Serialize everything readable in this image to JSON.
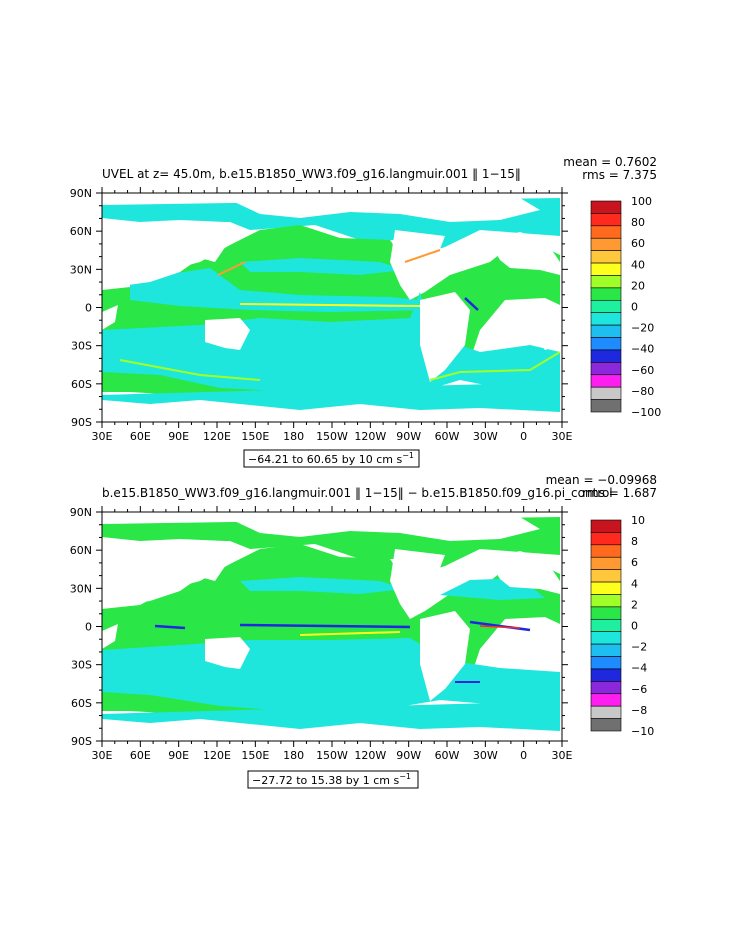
{
  "chart_data": [
    {
      "type": "heatmap",
      "title": "UVEL at z=  45.0m, b.e15.B1850_WW3.f09_g16.langmuir.001 ‖ 1−15‖",
      "mean_text": "mean = 0.7602",
      "rms_text": "rms = 7.375",
      "range_text": "−64.21 to 60.65 by 10 cm s",
      "range_sup": "−1",
      "x_ticks": [
        "30E",
        "60E",
        "90E",
        "120E",
        "150E",
        "180",
        "150W",
        "120W",
        "90W",
        "60W",
        "30W",
        "0",
        "30E"
      ],
      "y_ticks": [
        "90N",
        "60N",
        "30N",
        "0",
        "30S",
        "60S",
        "90S"
      ],
      "colorbar_labels": [
        "100",
        "80",
        "60",
        "40",
        "20",
        "0",
        "−20",
        "−40",
        "−60",
        "−80",
        "−100"
      ],
      "colorbar_colors": [
        "#c8141e",
        "#ff2a1e",
        "#ff6a1e",
        "#ff9a32",
        "#ffc83c",
        "#ffff1e",
        "#a0ff28",
        "#2ae646",
        "#1ef0a0",
        "#1ee6dc",
        "#1ebef0",
        "#1e8cff",
        "#1e28dc",
        "#8c28dc",
        "#ff1ef0",
        "#c8c8c8",
        "#707070"
      ]
    },
    {
      "type": "heatmap",
      "title": "b.e15.B1850_WW3.f09_g16.langmuir.001 ‖ 1−15‖ − b.e15.B1850.f09_g16.pi_control",
      "mean_text": "mean = −0.09968",
      "rms_text": "rms = 1.687",
      "range_text": "−27.72 to 15.38 by 1 cm s",
      "range_sup": "−1",
      "x_ticks": [
        "30E",
        "60E",
        "90E",
        "120E",
        "150E",
        "180",
        "150W",
        "120W",
        "90W",
        "60W",
        "30W",
        "0",
        "30E"
      ],
      "y_ticks": [
        "90N",
        "60N",
        "30N",
        "0",
        "30S",
        "60S",
        "90S"
      ],
      "colorbar_labels": [
        "10",
        "8",
        "6",
        "4",
        "2",
        "0",
        "−2",
        "−4",
        "−6",
        "−8",
        "−10"
      ],
      "colorbar_colors": [
        "#c8141e",
        "#ff2a1e",
        "#ff6a1e",
        "#ff9a32",
        "#ffc83c",
        "#ffff1e",
        "#a0ff28",
        "#2ae646",
        "#1ef0a0",
        "#1ee6dc",
        "#1ebef0",
        "#1e8cff",
        "#1e28dc",
        "#8c28dc",
        "#ff1ef0",
        "#c8c8c8",
        "#707070"
      ]
    }
  ]
}
